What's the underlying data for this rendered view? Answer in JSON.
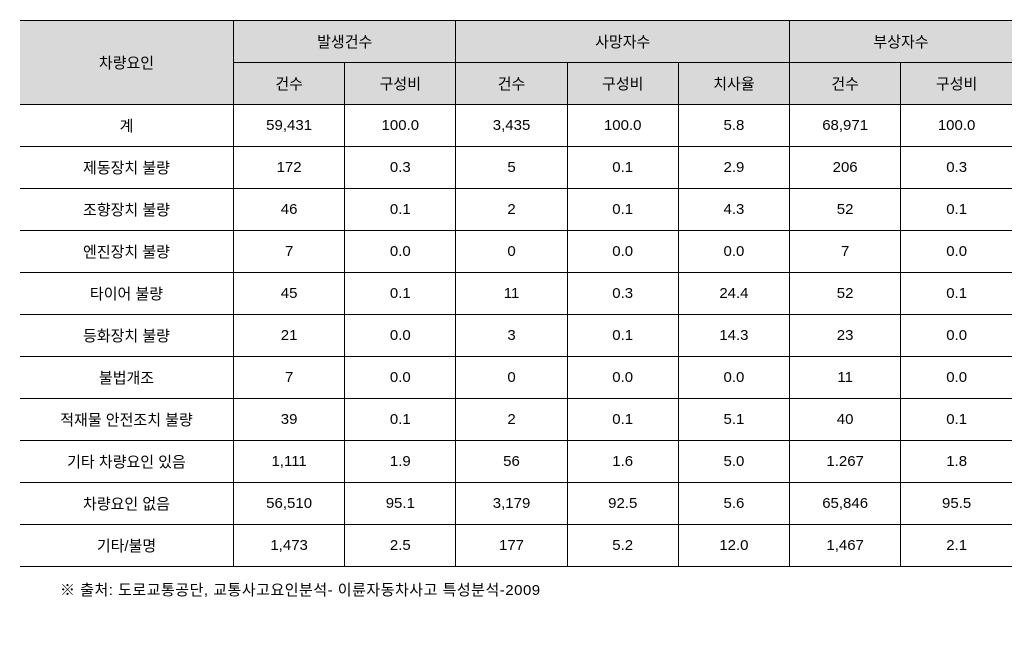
{
  "table": {
    "header1": {
      "factor": "차량요인",
      "occurrence": "발생건수",
      "deaths": "사망자수",
      "injuries": "부상자수"
    },
    "header2": {
      "count": "건수",
      "ratio": "구성비",
      "fatality_rate": "치사율"
    },
    "rows": [
      {
        "factor": "계",
        "occ_count": "59,431",
        "occ_ratio": "100.0",
        "death_count": "3,435",
        "death_ratio": "100.0",
        "fatality": "5.8",
        "inj_count": "68,971",
        "inj_ratio": "100.0"
      },
      {
        "factor": "제동장치 불량",
        "occ_count": "172",
        "occ_ratio": "0.3",
        "death_count": "5",
        "death_ratio": "0.1",
        "fatality": "2.9",
        "inj_count": "206",
        "inj_ratio": "0.3"
      },
      {
        "factor": "조향장치 불량",
        "occ_count": "46",
        "occ_ratio": "0.1",
        "death_count": "2",
        "death_ratio": "0.1",
        "fatality": "4.3",
        "inj_count": "52",
        "inj_ratio": "0.1"
      },
      {
        "factor": "엔진장치 불량",
        "occ_count": "7",
        "occ_ratio": "0.0",
        "death_count": "0",
        "death_ratio": "0.0",
        "fatality": "0.0",
        "inj_count": "7",
        "inj_ratio": "0.0"
      },
      {
        "factor": "타이어 불량",
        "occ_count": "45",
        "occ_ratio": "0.1",
        "death_count": "11",
        "death_ratio": "0.3",
        "fatality": "24.4",
        "inj_count": "52",
        "inj_ratio": "0.1"
      },
      {
        "factor": "등화장치 불량",
        "occ_count": "21",
        "occ_ratio": "0.0",
        "death_count": "3",
        "death_ratio": "0.1",
        "fatality": "14.3",
        "inj_count": "23",
        "inj_ratio": "0.0"
      },
      {
        "factor": "불법개조",
        "occ_count": "7",
        "occ_ratio": "0.0",
        "death_count": "0",
        "death_ratio": "0.0",
        "fatality": "0.0",
        "inj_count": "11",
        "inj_ratio": "0.0"
      },
      {
        "factor": "적재물 안전조치 불량",
        "occ_count": "39",
        "occ_ratio": "0.1",
        "death_count": "2",
        "death_ratio": "0.1",
        "fatality": "5.1",
        "inj_count": "40",
        "inj_ratio": "0.1"
      },
      {
        "factor": "기타 차량요인 있음",
        "occ_count": "1,111",
        "occ_ratio": "1.9",
        "death_count": "56",
        "death_ratio": "1.6",
        "fatality": "5.0",
        "inj_count": "1.267",
        "inj_ratio": "1.8"
      },
      {
        "factor": "차량요인 없음",
        "occ_count": "56,510",
        "occ_ratio": "95.1",
        "death_count": "3,179",
        "death_ratio": "92.5",
        "fatality": "5.6",
        "inj_count": "65,846",
        "inj_ratio": "95.5"
      },
      {
        "factor": "기타/불명",
        "occ_count": "1,473",
        "occ_ratio": "2.5",
        "death_count": "177",
        "death_ratio": "5.2",
        "fatality": "12.0",
        "inj_count": "1,467",
        "inj_ratio": "2.1"
      }
    ],
    "footnote": "※ 출처: 도로교통공단, 교통사고요인분석- 이륜자동차사고 특성분석-2009",
    "styling": {
      "header_bg_color": "#d9d9d9",
      "border_color": "#000000",
      "background_color": "#ffffff",
      "font_size": 15,
      "font_family": "Malgun Gothic",
      "col_widths": {
        "factor": 192,
        "data": 100
      }
    }
  }
}
